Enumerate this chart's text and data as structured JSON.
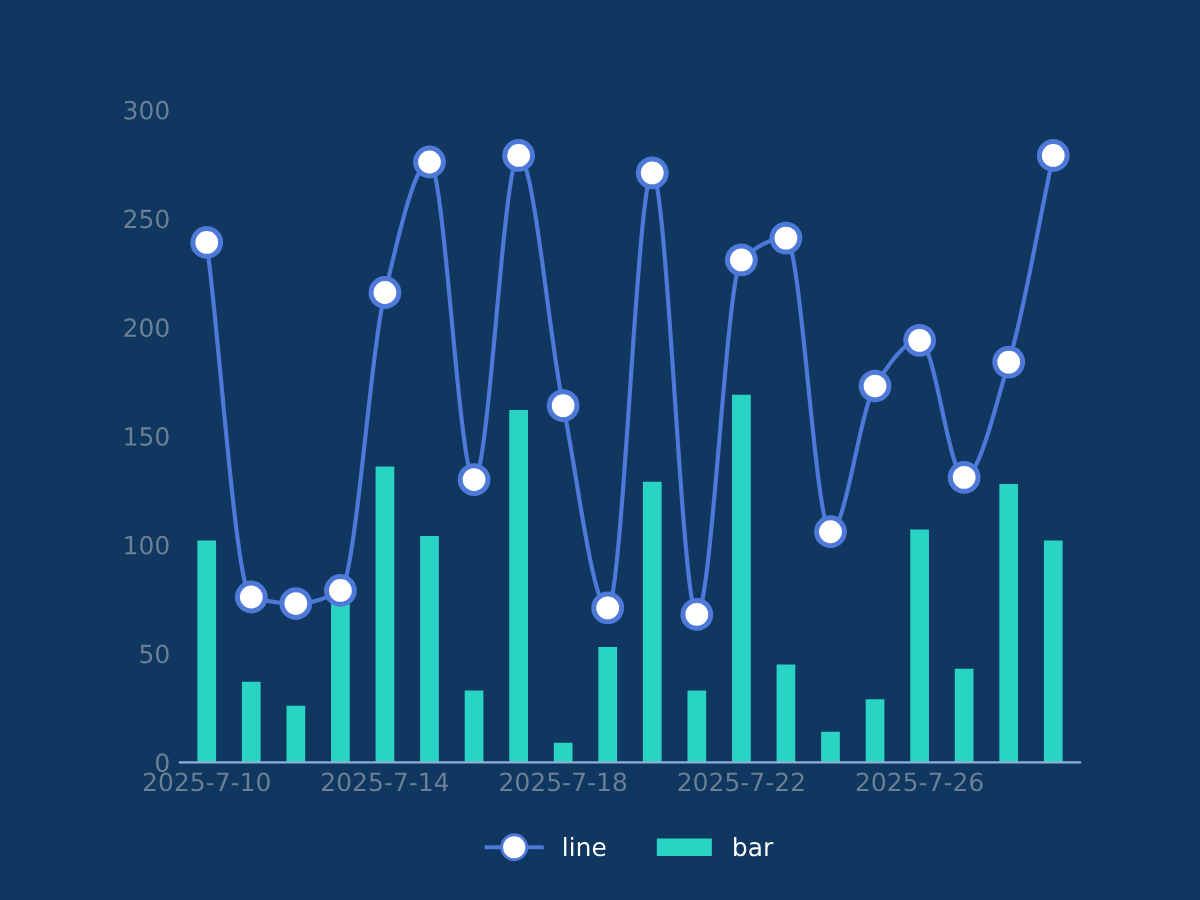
{
  "chart_data": {
    "type": "bar",
    "categories": [
      "2025-7-10",
      null,
      null,
      null,
      "2025-7-14",
      null,
      null,
      null,
      "2025-7-18",
      null,
      null,
      null,
      "2025-7-22",
      null,
      null,
      null,
      "2025-7-26",
      null,
      null,
      null
    ],
    "series": [
      {
        "name": "line",
        "type": "line",
        "color": "#4f79d9",
        "marker": "circle",
        "values": [
          239,
          76,
          73,
          79,
          216,
          276,
          130,
          279,
          164,
          71,
          271,
          68,
          231,
          241,
          106,
          173,
          194,
          131,
          184,
          279
        ]
      },
      {
        "name": "bar",
        "color": "#2ad4c4",
        "values": [
          102,
          37,
          26,
          75,
          136,
          104,
          33,
          162,
          9,
          53,
          129,
          33,
          169,
          45,
          14,
          29,
          107,
          43,
          128,
          102
        ]
      }
    ],
    "ylim": [
      0,
      300
    ],
    "yticks": [
      0,
      50,
      100,
      150,
      200,
      250,
      300
    ],
    "grid": false,
    "legend": "bottom"
  }
}
